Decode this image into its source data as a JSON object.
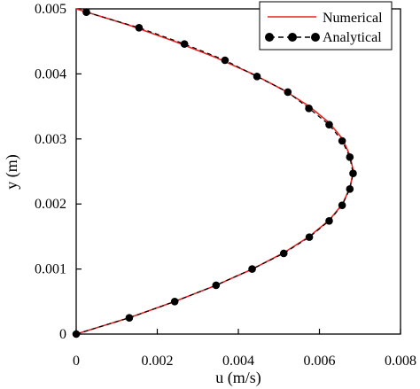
{
  "chart_data": {
    "type": "line",
    "xlabel": "u (m/s)",
    "ylabel": "y (m)",
    "xlim": [
      0,
      0.008
    ],
    "ylim": [
      0,
      0.005
    ],
    "x_ticks": [
      "0",
      "0.002",
      "0.004",
      "0.006",
      "0.008"
    ],
    "y_ticks": [
      "0",
      "0.001",
      "0.002",
      "0.003",
      "0.004",
      "0.005"
    ],
    "x_tick_values": [
      0,
      0.002,
      0.004,
      0.006,
      0.008
    ],
    "y_tick_values": [
      0,
      0.001,
      0.002,
      0.003,
      0.004,
      0.005
    ],
    "grid": false,
    "legend_position": "top-right",
    "series": [
      {
        "name": "Numerical",
        "style": "solid line",
        "color": "#e8231f",
        "points": [
          [
            0,
            0
          ],
          [
            0.001305,
            0.00025
          ],
          [
            0.00243,
            0.0005
          ],
          [
            0.00345,
            0.00075
          ],
          [
            0.00435,
            0.001
          ],
          [
            0.00512,
            0.00125
          ],
          [
            0.00575,
            0.0015
          ],
          [
            0.00624,
            0.00175
          ],
          [
            0.00657,
            0.002
          ],
          [
            0.00675,
            0.00225
          ],
          [
            0.00684,
            0.0025
          ],
          [
            0.00675,
            0.00275
          ],
          [
            0.00657,
            0.003
          ],
          [
            0.00624,
            0.00325
          ],
          [
            0.00575,
            0.0035
          ],
          [
            0.00512,
            0.00375
          ],
          [
            0.00435,
            0.004
          ],
          [
            0.00345,
            0.00425
          ],
          [
            0.00243,
            0.0045
          ],
          [
            0.001305,
            0.00475
          ],
          [
            0,
            0.005
          ]
        ]
      },
      {
        "name": "Analytical",
        "style": "dashed line with circle markers",
        "color": "#000000",
        "points": [
          [
            0,
            0
          ],
          [
            0.00131,
            0.00025
          ],
          [
            0.00243,
            0.0005
          ],
          [
            0.00345,
            0.00075
          ],
          [
            0.00434,
            0.001
          ],
          [
            0.00512,
            0.00124
          ],
          [
            0.00575,
            0.00149
          ],
          [
            0.00624,
            0.00174
          ],
          [
            0.00656,
            0.00198
          ],
          [
            0.00675,
            0.00223
          ],
          [
            0.00683,
            0.00247
          ],
          [
            0.00675,
            0.00272
          ],
          [
            0.00656,
            0.00297
          ],
          [
            0.00624,
            0.00322
          ],
          [
            0.00574,
            0.00347
          ],
          [
            0.00522,
            0.00372
          ],
          [
            0.00446,
            0.00396
          ],
          [
            0.00367,
            0.00421
          ],
          [
            0.00267,
            0.00446
          ],
          [
            0.00155,
            0.00471
          ],
          [
            0.00025,
            0.00495
          ]
        ]
      }
    ]
  }
}
